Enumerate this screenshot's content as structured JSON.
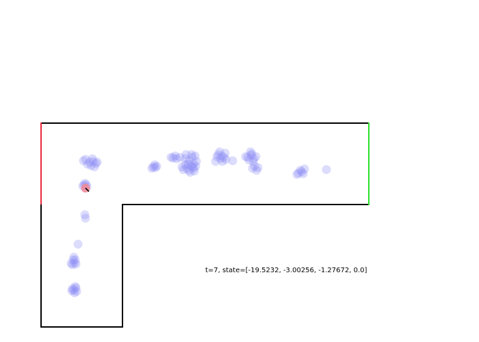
{
  "status": {
    "text": "t=7, state=[-19.5232, -3.00256, -1.27672, 0.0]"
  },
  "colors": {
    "wall": "#000000",
    "start_edge": "#e8283a",
    "goal_edge": "#28e028",
    "particle": "#8c8cf5",
    "agent": "#f08c9a",
    "heading": "#000000",
    "background": "#ffffff"
  }
}
